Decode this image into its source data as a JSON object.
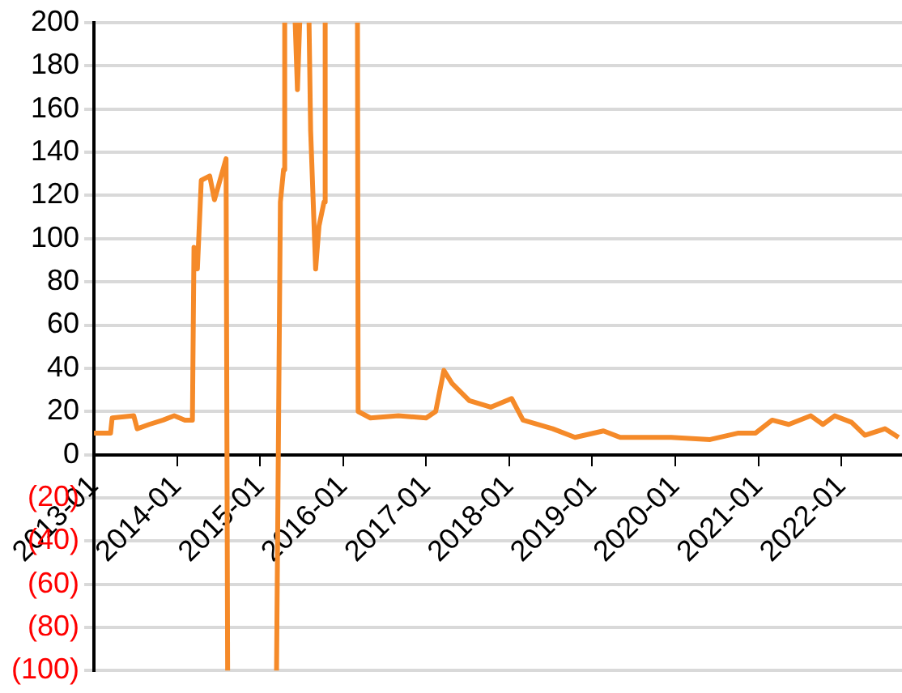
{
  "chart_data": {
    "type": "line",
    "color": "#f58a29",
    "x": [
      "2013-01-01",
      "2013-03-15",
      "2013-03-22",
      "2013-06-25",
      "2013-07-10",
      "2013-09-01",
      "2013-11-01",
      "2013-12-20",
      "2014-02-05",
      "2014-03-10",
      "2014-03-17",
      "2014-04-01",
      "2014-04-18",
      "2014-05-25",
      "2014-06-15",
      "2014-08-05",
      "2014-08-12",
      "2014-12-01",
      "2015-03-15",
      "2015-04-01",
      "2015-04-15",
      "2015-04-20",
      "2015-05-10",
      "2015-06-05",
      "2015-06-15",
      "2015-06-25",
      "2015-07-01",
      "2015-08-05",
      "2015-08-12",
      "2015-09-03",
      "2015-09-18",
      "2015-10-10",
      "2015-10-15",
      "2016-01-01",
      "2016-03-05",
      "2016-03-08",
      "2016-05-01",
      "2016-09-01",
      "2017-01-01",
      "2017-02-12",
      "2017-03-20",
      "2017-04-25",
      "2017-07-10",
      "2017-10-12",
      "2018-01-12",
      "2018-03-03",
      "2018-07-12",
      "2018-10-18",
      "2019-02-20",
      "2019-05-05",
      "2019-12-15",
      "2020-06-03",
      "2020-10-06",
      "2020-12-20",
      "2021-03-03",
      "2021-05-15",
      "2021-08-20",
      "2021-10-12",
      "2021-12-03",
      "2022-02-15",
      "2022-04-15",
      "2022-07-12",
      "2022-09-10"
    ],
    "values": [
      10,
      10,
      17,
      18,
      12,
      14,
      16,
      18,
      16,
      16,
      96,
      86,
      127,
      129,
      118,
      137,
      -100,
      null,
      -100,
      117,
      132,
      200,
      null,
      200,
      169,
      200,
      null,
      200,
      150,
      86,
      106,
      117,
      200,
      null,
      200,
      20,
      17,
      18,
      17,
      20,
      39,
      33,
      25,
      22,
      26,
      16,
      12,
      8,
      11,
      8,
      8,
      7,
      10,
      10,
      16,
      14,
      18,
      14,
      18,
      15,
      9,
      12,
      8
    ],
    "xlim": [
      "2013-01-01",
      "2022-09-25"
    ],
    "xticks": [
      "2013-01",
      "2014-01",
      "2015-01",
      "2016-01",
      "2017-01",
      "2018-01",
      "2019-01",
      "2020-01",
      "2021-01",
      "2022-01"
    ],
    "ylim": [
      -100,
      200
    ],
    "yticks": [
      {
        "value": -100,
        "label": "(100)"
      },
      {
        "value": -80,
        "label": "(80)"
      },
      {
        "value": -60,
        "label": "(60)"
      },
      {
        "value": -40,
        "label": "(40)"
      },
      {
        "value": -20,
        "label": "(20)"
      },
      0,
      20,
      40,
      60,
      80,
      100,
      120,
      140,
      160,
      180,
      200
    ],
    "grid": "y",
    "legend": false,
    "marker": "none",
    "line_style": "solid"
  }
}
